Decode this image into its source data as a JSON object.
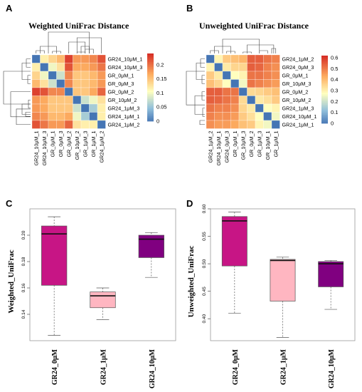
{
  "panels": {
    "a": "A",
    "b": "B",
    "c": "C",
    "d": "D"
  },
  "chart_data": [
    {
      "type": "heatmap",
      "title": "Weighted UniFrac Distance",
      "rows": [
        "GR24_10μM_1",
        "GR24_10μM_3",
        "GR_0μM_1",
        "GR_0μM_3",
        "GR_0μM_2",
        "GR_10μM_2",
        "GR24_1μM_3",
        "GR24_1μM_1",
        "GR24_1μM_2"
      ],
      "columns": [
        "GR24_10μM_1",
        "GR24_10μM_3",
        "GR_0μM_1",
        "GR_0μM_3",
        "GR_0μM_2",
        "GR_10μM_2",
        "GR_1μM_3",
        "GR_1μM_1",
        "GR24_1μM_2"
      ],
      "values": [
        [
          0,
          0.12,
          0.14,
          0.16,
          0.23,
          0.18,
          0.18,
          0.19,
          0.22
        ],
        [
          0.12,
          0,
          0.1,
          0.13,
          0.22,
          0.17,
          0.17,
          0.18,
          0.2
        ],
        [
          0.14,
          0.1,
          0,
          0.08,
          0.19,
          0.15,
          0.15,
          0.16,
          0.18
        ],
        [
          0.16,
          0.13,
          0.08,
          0,
          0.19,
          0.15,
          0.15,
          0.16,
          0.18
        ],
        [
          0.23,
          0.22,
          0.19,
          0.19,
          0,
          0.15,
          0.15,
          0.17,
          0.21
        ],
        [
          0.18,
          0.17,
          0.15,
          0.15,
          0.15,
          0,
          0.08,
          0.1,
          0.13
        ],
        [
          0.18,
          0.17,
          0.15,
          0.15,
          0.15,
          0.08,
          0,
          0.06,
          0.12
        ],
        [
          0.19,
          0.18,
          0.16,
          0.16,
          0.17,
          0.1,
          0.06,
          0,
          0.12
        ],
        [
          0.22,
          0.2,
          0.18,
          0.18,
          0.21,
          0.13,
          0.12,
          0.12,
          0
        ]
      ],
      "colorbar": {
        "min": 0,
        "max": 0.24,
        "ticks": [
          "0",
          "0.05",
          "0.1",
          "0.15",
          "0.2"
        ],
        "tick_values": [
          0,
          0.05,
          0.1,
          0.15,
          0.2
        ]
      }
    },
    {
      "type": "heatmap",
      "title": "Unweighted UniFrac Distance",
      "rows": [
        "GR24_1μM_2",
        "GR24_0μM_3",
        "GR_0μM_1",
        "GR_10μM_3",
        "GR_0μM_2",
        "GR_10μM_2",
        "GR24_1μM_3",
        "GR24_10μM_1",
        "GR24_1μM_1"
      ],
      "columns": [
        "GR24_1μM_2",
        "GR24_10μM_1",
        "GR24_0μM_3",
        "GR_0μM_1",
        "GR_10μM_3",
        "GR_0μM_2",
        "GR_1μM_3",
        "GR_10μM_1",
        "GR_1μM_1"
      ],
      "values": [
        [
          0,
          0.3,
          0.38,
          0.4,
          0.42,
          0.55,
          0.55,
          0.52,
          0.5
        ],
        [
          0.3,
          0,
          0.32,
          0.36,
          0.36,
          0.55,
          0.54,
          0.5,
          0.48
        ],
        [
          0.38,
          0.32,
          0,
          0.28,
          0.3,
          0.52,
          0.52,
          0.5,
          0.48
        ],
        [
          0.4,
          0.36,
          0.28,
          0,
          0.26,
          0.52,
          0.5,
          0.48,
          0.46
        ],
        [
          0.55,
          0.55,
          0.52,
          0.52,
          0,
          0.35,
          0.36,
          0.38,
          0.4
        ],
        [
          0.55,
          0.54,
          0.52,
          0.5,
          0.35,
          0,
          0.32,
          0.34,
          0.38
        ],
        [
          0.52,
          0.5,
          0.5,
          0.48,
          0.36,
          0.32,
          0,
          0.28,
          0.3
        ],
        [
          0.5,
          0.48,
          0.48,
          0.46,
          0.38,
          0.34,
          0.28,
          0,
          0.26
        ],
        [
          0.48,
          0.46,
          0.46,
          0.44,
          0.4,
          0.38,
          0.3,
          0.26,
          0
        ]
      ],
      "colorbar": {
        "min": 0,
        "max": 0.62,
        "ticks": [
          "0",
          "0.1",
          "0.2",
          "0.3",
          "0.4",
          "0.5",
          "0.6"
        ],
        "tick_values": [
          0,
          0.1,
          0.2,
          0.3,
          0.4,
          0.5,
          0.6
        ]
      }
    },
    {
      "type": "box",
      "ylabel": "Weighted_UniFrac",
      "categories": [
        "GR24_0μM",
        "GR24_1μM",
        "GR24_10μM"
      ],
      "ylim": [
        0.12,
        0.22
      ],
      "yticks": [
        0.14,
        0.16,
        0.18,
        0.2
      ],
      "ytick_labels": [
        "0.14",
        "0.16",
        "0.18",
        "0.20"
      ],
      "boxes": [
        {
          "min": 0.124,
          "q1": 0.162,
          "median": 0.201,
          "q3": 0.207,
          "max": 0.214,
          "color": "#c71585"
        },
        {
          "min": 0.136,
          "q1": 0.145,
          "median": 0.154,
          "q3": 0.157,
          "max": 0.16,
          "color": "#ffb6c1"
        },
        {
          "min": 0.168,
          "q1": 0.183,
          "median": 0.197,
          "q3": 0.2,
          "max": 0.202,
          "color": "#800080"
        }
      ]
    },
    {
      "type": "box",
      "ylabel": "Unweighted_UniFrac",
      "categories": [
        "GR24_0μM",
        "GR24_1μM",
        "GR24_10μM"
      ],
      "ylim": [
        0.36,
        0.6
      ],
      "yticks": [
        0.4,
        0.45,
        0.5,
        0.55,
        0.6
      ],
      "ytick_labels": [
        "0.40",
        "0.45",
        "0.50",
        "0.55",
        "0.60"
      ],
      "boxes": [
        {
          "min": 0.41,
          "q1": 0.496,
          "median": 0.578,
          "q3": 0.586,
          "max": 0.594,
          "color": "#c71585"
        },
        {
          "min": 0.366,
          "q1": 0.432,
          "median": 0.506,
          "q3": 0.508,
          "max": 0.512,
          "color": "#ffb6c1"
        },
        {
          "min": 0.417,
          "q1": 0.458,
          "median": 0.5,
          "q3": 0.504,
          "max": 0.506,
          "color": "#800080"
        }
      ]
    }
  ]
}
